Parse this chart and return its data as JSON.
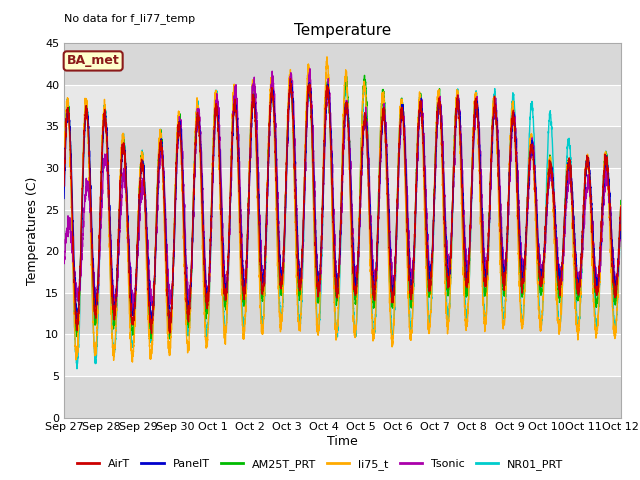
{
  "title": "Temperature",
  "ylabel": "Temperatures (C)",
  "xlabel": "Time",
  "annotation": "No data for f_li77_temp",
  "box_label": "BA_met",
  "ylim": [
    0,
    45
  ],
  "yticks": [
    0,
    5,
    10,
    15,
    20,
    25,
    30,
    35,
    40,
    45
  ],
  "background_color": "#e8e8e8",
  "plot_bg_color": "#ebebeb",
  "series": [
    {
      "name": "AirT",
      "color": "#cc0000"
    },
    {
      "name": "PanelT",
      "color": "#0000cc"
    },
    {
      "name": "AM25T_PRT",
      "color": "#00bb00"
    },
    {
      "name": "li75_t",
      "color": "#ffaa00"
    },
    {
      "name": "Tsonic",
      "color": "#aa00aa"
    },
    {
      "name": "NR01_PRT",
      "color": "#00cccc"
    }
  ],
  "xtick_labels": [
    "Sep 27",
    "Sep 28",
    "Sep 29",
    "Sep 30",
    "Oct 1",
    "Oct 2",
    "Oct 3",
    "Oct 4",
    "Oct 5",
    "Oct 6",
    "Oct 7",
    "Oct 8",
    "Oct 9",
    "Oct 10",
    "Oct 11",
    "Oct 12"
  ],
  "xtick_positions": [
    0,
    1,
    2,
    3,
    4,
    5,
    6,
    7,
    8,
    9,
    10,
    11,
    12,
    13,
    14,
    15
  ],
  "figsize": [
    6.4,
    4.8
  ],
  "dpi": 100,
  "lw": 1.0,
  "band_colors": [
    "#d8d8d8",
    "#e8e8e8"
  ]
}
